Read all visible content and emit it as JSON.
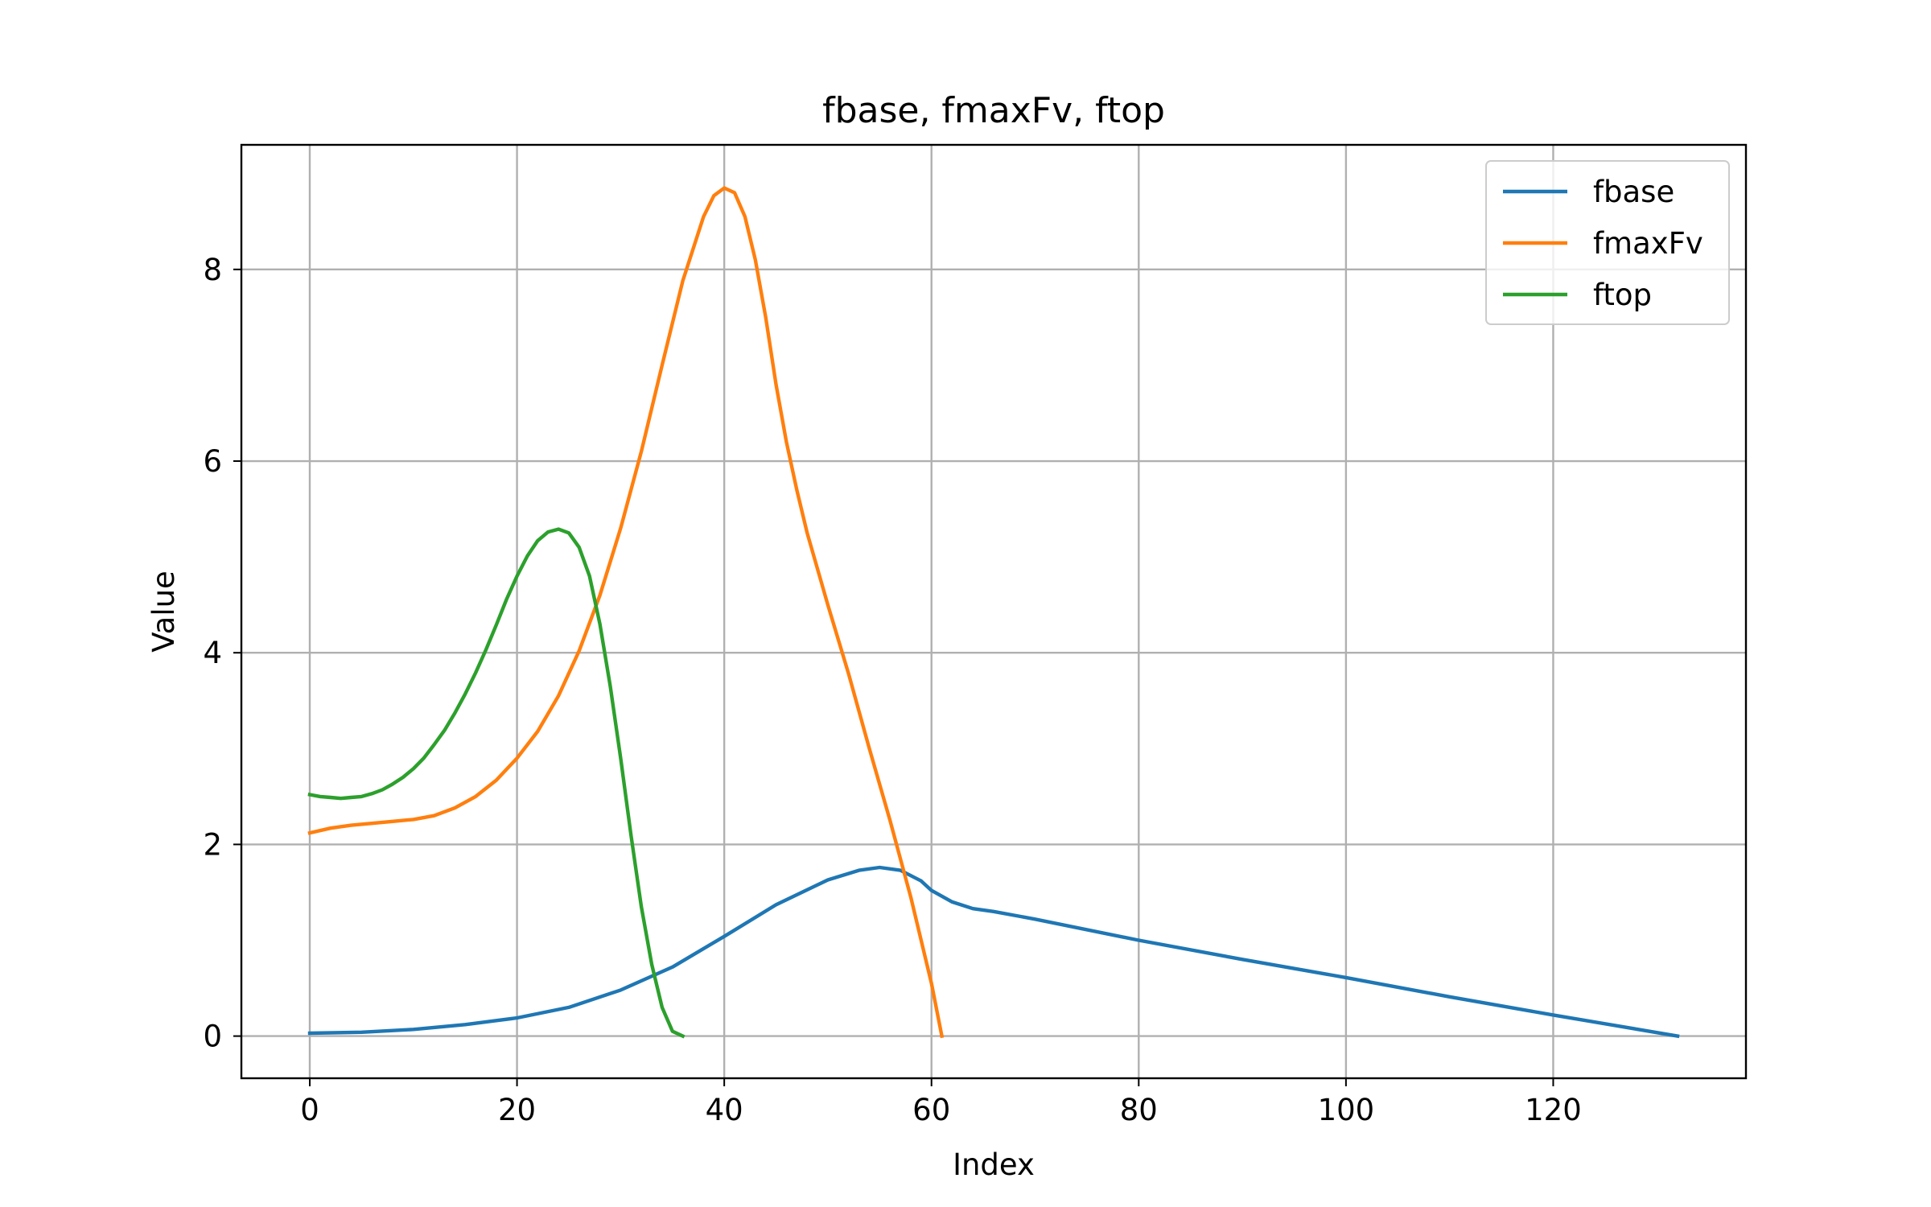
{
  "chart_data": {
    "type": "line",
    "title": "fbase, fmaxFv, ftop",
    "xlabel": "Index",
    "ylabel": "Value",
    "xlim": [
      -6.6,
      138.6
    ],
    "ylim": [
      -0.44,
      9.3
    ],
    "xticks": [
      0,
      20,
      40,
      60,
      80,
      100,
      120
    ],
    "yticks": [
      0,
      2,
      4,
      6,
      8
    ],
    "grid": true,
    "legend_position": "top-right",
    "series": [
      {
        "name": "fbase",
        "color": "#1f77b4",
        "points": [
          [
            0,
            0.03
          ],
          [
            5,
            0.04
          ],
          [
            10,
            0.07
          ],
          [
            15,
            0.12
          ],
          [
            20,
            0.19
          ],
          [
            25,
            0.3
          ],
          [
            30,
            0.48
          ],
          [
            35,
            0.72
          ],
          [
            40,
            1.04
          ],
          [
            45,
            1.37
          ],
          [
            50,
            1.63
          ],
          [
            53,
            1.73
          ],
          [
            55,
            1.76
          ],
          [
            57,
            1.73
          ],
          [
            59,
            1.62
          ],
          [
            60,
            1.52
          ],
          [
            62,
            1.4
          ],
          [
            64,
            1.33
          ],
          [
            66,
            1.3
          ],
          [
            70,
            1.22
          ],
          [
            80,
            1.0
          ],
          [
            90,
            0.8
          ],
          [
            100,
            0.61
          ],
          [
            110,
            0.41
          ],
          [
            120,
            0.22
          ],
          [
            132,
            0.0
          ]
        ]
      },
      {
        "name": "fmaxFv",
        "color": "#ff7f0e",
        "points": [
          [
            0,
            2.12
          ],
          [
            2,
            2.17
          ],
          [
            4,
            2.2
          ],
          [
            6,
            2.22
          ],
          [
            8,
            2.24
          ],
          [
            10,
            2.26
          ],
          [
            12,
            2.3
          ],
          [
            14,
            2.38
          ],
          [
            16,
            2.5
          ],
          [
            18,
            2.67
          ],
          [
            20,
            2.9
          ],
          [
            22,
            3.18
          ],
          [
            24,
            3.55
          ],
          [
            26,
            4.02
          ],
          [
            28,
            4.6
          ],
          [
            30,
            5.3
          ],
          [
            32,
            6.1
          ],
          [
            34,
            7.0
          ],
          [
            36,
            7.88
          ],
          [
            38,
            8.55
          ],
          [
            39,
            8.77
          ],
          [
            40,
            8.85
          ],
          [
            41,
            8.8
          ],
          [
            42,
            8.55
          ],
          [
            43,
            8.1
          ],
          [
            44,
            7.5
          ],
          [
            45,
            6.8
          ],
          [
            46,
            6.2
          ],
          [
            47,
            5.7
          ],
          [
            48,
            5.25
          ],
          [
            50,
            4.5
          ],
          [
            52,
            3.78
          ],
          [
            54,
            3.0
          ],
          [
            56,
            2.25
          ],
          [
            58,
            1.45
          ],
          [
            60,
            0.55
          ],
          [
            61,
            0.0
          ]
        ]
      },
      {
        "name": "ftop",
        "color": "#2ca02c",
        "points": [
          [
            0,
            2.52
          ],
          [
            1,
            2.5
          ],
          [
            2,
            2.49
          ],
          [
            3,
            2.48
          ],
          [
            4,
            2.49
          ],
          [
            5,
            2.5
          ],
          [
            6,
            2.53
          ],
          [
            7,
            2.57
          ],
          [
            8,
            2.63
          ],
          [
            9,
            2.7
          ],
          [
            10,
            2.79
          ],
          [
            11,
            2.9
          ],
          [
            12,
            3.04
          ],
          [
            13,
            3.19
          ],
          [
            14,
            3.37
          ],
          [
            15,
            3.57
          ],
          [
            16,
            3.79
          ],
          [
            17,
            4.03
          ],
          [
            18,
            4.29
          ],
          [
            19,
            4.56
          ],
          [
            20,
            4.8
          ],
          [
            21,
            5.01
          ],
          [
            22,
            5.17
          ],
          [
            23,
            5.26
          ],
          [
            24,
            5.29
          ],
          [
            25,
            5.25
          ],
          [
            26,
            5.1
          ],
          [
            27,
            4.8
          ],
          [
            28,
            4.3
          ],
          [
            29,
            3.65
          ],
          [
            30,
            2.9
          ],
          [
            31,
            2.1
          ],
          [
            32,
            1.35
          ],
          [
            33,
            0.75
          ],
          [
            34,
            0.3
          ],
          [
            35,
            0.05
          ],
          [
            36,
            0.0
          ]
        ]
      }
    ]
  }
}
